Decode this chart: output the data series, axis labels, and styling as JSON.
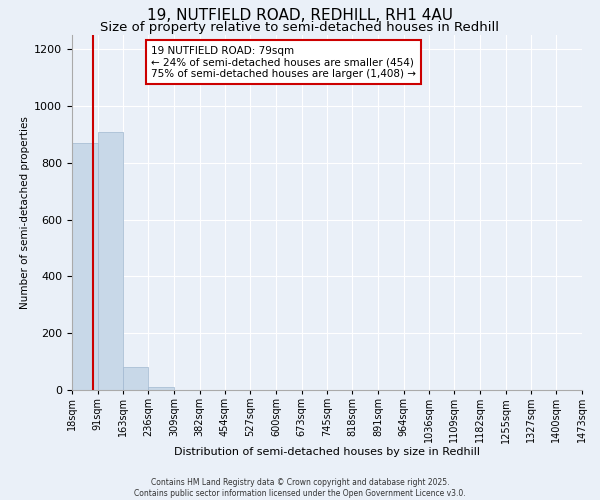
{
  "title": "19, NUTFIELD ROAD, REDHILL, RH1 4AU",
  "subtitle": "Size of property relative to semi-detached houses in Redhill",
  "xlabel": "Distribution of semi-detached houses by size in Redhill",
  "ylabel": "Number of semi-detached properties",
  "footer_line1": "Contains HM Land Registry data © Crown copyright and database right 2025.",
  "footer_line2": "Contains public sector information licensed under the Open Government Licence v3.0.",
  "bar_edges": [
    18,
    91,
    163,
    236,
    309,
    382,
    454,
    527,
    600,
    673,
    745,
    818,
    891,
    964,
    1036,
    1109,
    1182,
    1255,
    1327,
    1400,
    1473
  ],
  "bar_heights": [
    870,
    910,
    80,
    10,
    0,
    0,
    0,
    0,
    0,
    0,
    0,
    0,
    0,
    0,
    0,
    0,
    0,
    0,
    0,
    0
  ],
  "bar_color": "#c8d8e8",
  "bar_edgecolor": "#a0b8d0",
  "property_value": 79,
  "red_line_color": "#cc0000",
  "annotation_text": "19 NUTFIELD ROAD: 79sqm\n← 24% of semi-detached houses are smaller (454)\n75% of semi-detached houses are larger (1,408) →",
  "annotation_box_color": "white",
  "annotation_box_edgecolor": "#cc0000",
  "ylim": [
    0,
    1250
  ],
  "yticks": [
    0,
    200,
    400,
    600,
    800,
    1000,
    1200
  ],
  "background_color": "#eaf0f8",
  "plot_background_color": "#eaf0f8",
  "grid_color": "white",
  "title_fontsize": 11,
  "subtitle_fontsize": 9.5,
  "tick_label_fontsize": 7,
  "ylabel_fontsize": 7.5,
  "xlabel_fontsize": 8
}
